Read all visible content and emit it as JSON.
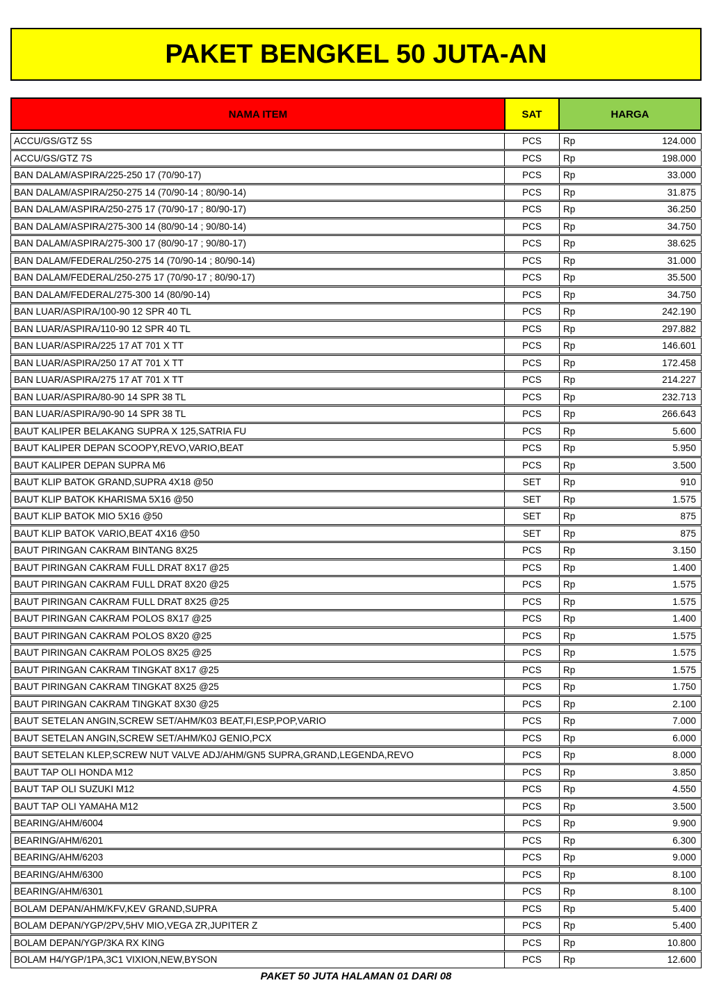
{
  "title": "PAKET BENGKEL 50 JUTA-AN",
  "footer": "PAKET 50 JUTA HALAMAN 01 DARI 08",
  "colors": {
    "banner_bg": "#FFFF00",
    "item_header_bg": "#FF0000",
    "unit_header_bg": "#FFFF00",
    "price_header_bg": "#92D050",
    "border": "#000000"
  },
  "table": {
    "headers": {
      "item": "NAMA ITEM",
      "unit": "SAT",
      "price": "HARGA"
    },
    "currency_prefix": "Rp",
    "items": [
      {
        "name": "ACCU/GS/GTZ 5S",
        "sat": "PCS",
        "price": "124.000"
      },
      {
        "name": "ACCU/GS/GTZ 7S",
        "sat": "PCS",
        "price": "198.000"
      },
      {
        "name": "BAN DALAM/ASPIRA/225-250 17 (70/90-17)",
        "sat": "PCS",
        "price": "33.000"
      },
      {
        "name": "BAN DALAM/ASPIRA/250-275 14 (70/90-14 ; 80/90-14)",
        "sat": "PCS",
        "price": "31.875"
      },
      {
        "name": "BAN DALAM/ASPIRA/250-275 17 (70/90-17 ; 80/90-17)",
        "sat": "PCS",
        "price": "36.250"
      },
      {
        "name": "BAN DALAM/ASPIRA/275-300 14 (80/90-14 ; 90/80-14)",
        "sat": "PCS",
        "price": "34.750"
      },
      {
        "name": "BAN DALAM/ASPIRA/275-300 17 (80/90-17 ; 90/80-17)",
        "sat": "PCS",
        "price": "38.625"
      },
      {
        "name": "BAN DALAM/FEDERAL/250-275 14 (70/90-14 ; 80/90-14)",
        "sat": "PCS",
        "price": "31.000"
      },
      {
        "name": "BAN DALAM/FEDERAL/250-275 17 (70/90-17 ; 80/90-17)",
        "sat": "PCS",
        "price": "35.500"
      },
      {
        "name": "BAN DALAM/FEDERAL/275-300 14 (80/90-14)",
        "sat": "PCS",
        "price": "34.750"
      },
      {
        "name": "BAN LUAR/ASPIRA/100-90 12 SPR 40 TL",
        "sat": "PCS",
        "price": "242.190"
      },
      {
        "name": "BAN LUAR/ASPIRA/110-90 12 SPR 40 TL",
        "sat": "PCS",
        "price": "297.882"
      },
      {
        "name": "BAN LUAR/ASPIRA/225 17 AT 701 X TT",
        "sat": "PCS",
        "price": "146.601"
      },
      {
        "name": "BAN LUAR/ASPIRA/250 17 AT 701 X TT",
        "sat": "PCS",
        "price": "172.458"
      },
      {
        "name": "BAN LUAR/ASPIRA/275 17 AT 701 X TT",
        "sat": "PCS",
        "price": "214.227"
      },
      {
        "name": "BAN LUAR/ASPIRA/80-90 14 SPR 38 TL",
        "sat": "PCS",
        "price": "232.713"
      },
      {
        "name": "BAN LUAR/ASPIRA/90-90 14 SPR 38 TL",
        "sat": "PCS",
        "price": "266.643"
      },
      {
        "name": "BAUT KALIPER BELAKANG SUPRA X 125,SATRIA FU",
        "sat": "PCS",
        "price": "5.600"
      },
      {
        "name": "BAUT KALIPER DEPAN SCOOPY,REVO,VARIO,BEAT",
        "sat": "PCS",
        "price": "5.950"
      },
      {
        "name": "BAUT KALIPER DEPAN SUPRA M6",
        "sat": "PCS",
        "price": "3.500"
      },
      {
        "name": "BAUT KLIP BATOK GRAND,SUPRA 4X18 @50",
        "sat": "SET",
        "price": "910"
      },
      {
        "name": "BAUT KLIP BATOK KHARISMA 5X16 @50",
        "sat": "SET",
        "price": "1.575"
      },
      {
        "name": "BAUT KLIP BATOK MIO 5X16 @50",
        "sat": "SET",
        "price": "875"
      },
      {
        "name": "BAUT KLIP BATOK VARIO,BEAT 4X16 @50",
        "sat": "SET",
        "price": "875"
      },
      {
        "name": "BAUT PIRINGAN CAKRAM BINTANG 8X25",
        "sat": "PCS",
        "price": "3.150"
      },
      {
        "name": "BAUT PIRINGAN CAKRAM FULL DRAT 8X17 @25",
        "sat": "PCS",
        "price": "1.400"
      },
      {
        "name": "BAUT PIRINGAN CAKRAM FULL DRAT 8X20 @25",
        "sat": "PCS",
        "price": "1.575"
      },
      {
        "name": "BAUT PIRINGAN CAKRAM FULL DRAT 8X25 @25",
        "sat": "PCS",
        "price": "1.575"
      },
      {
        "name": "BAUT PIRINGAN CAKRAM POLOS 8X17 @25",
        "sat": "PCS",
        "price": "1.400"
      },
      {
        "name": "BAUT PIRINGAN CAKRAM POLOS 8X20 @25",
        "sat": "PCS",
        "price": "1.575"
      },
      {
        "name": "BAUT PIRINGAN CAKRAM POLOS 8X25 @25",
        "sat": "PCS",
        "price": "1.575"
      },
      {
        "name": "BAUT PIRINGAN CAKRAM TINGKAT 8X17 @25",
        "sat": "PCS",
        "price": "1.575"
      },
      {
        "name": "BAUT PIRINGAN CAKRAM TINGKAT 8X25 @25",
        "sat": "PCS",
        "price": "1.750"
      },
      {
        "name": "BAUT PIRINGAN CAKRAM TINGKAT 8X30 @25",
        "sat": "PCS",
        "price": "2.100"
      },
      {
        "name": "BAUT SETELAN ANGIN,SCREW SET/AHM/K03 BEAT,FI,ESP,POP,VARIO",
        "sat": "PCS",
        "price": "7.000"
      },
      {
        "name": "BAUT SETELAN ANGIN,SCREW SET/AHM/K0J GENIO,PCX",
        "sat": "PCS",
        "price": "6.000"
      },
      {
        "name": "BAUT SETELAN KLEP,SCREW NUT VALVE ADJ/AHM/GN5 SUPRA,GRAND,LEGENDA,REVO",
        "sat": "PCS",
        "price": "8.000"
      },
      {
        "name": "BAUT TAP OLI HONDA M12",
        "sat": "PCS",
        "price": "3.850"
      },
      {
        "name": "BAUT TAP OLI SUZUKI M12",
        "sat": "PCS",
        "price": "4.550"
      },
      {
        "name": "BAUT TAP OLI YAMAHA M12",
        "sat": "PCS",
        "price": "3.500"
      },
      {
        "name": "BEARING/AHM/6004",
        "sat": "PCS",
        "price": "9.900"
      },
      {
        "name": "BEARING/AHM/6201",
        "sat": "PCS",
        "price": "6.300"
      },
      {
        "name": "BEARING/AHM/6203",
        "sat": "PCS",
        "price": "9.000"
      },
      {
        "name": "BEARING/AHM/6300",
        "sat": "PCS",
        "price": "8.100"
      },
      {
        "name": "BEARING/AHM/6301",
        "sat": "PCS",
        "price": "8.100"
      },
      {
        "name": "BOLAM DEPAN/AHM/KFV,KEV GRAND,SUPRA",
        "sat": "PCS",
        "price": "5.400"
      },
      {
        "name": "BOLAM DEPAN/YGP/2PV,5HV MIO,VEGA ZR,JUPITER Z",
        "sat": "PCS",
        "price": "5.400"
      },
      {
        "name": "BOLAM DEPAN/YGP/3KA RX KING",
        "sat": "PCS",
        "price": "10.800"
      },
      {
        "name": "BOLAM H4/YGP/1PA,3C1 VIXION,NEW,BYSON",
        "sat": "PCS",
        "price": "12.600"
      }
    ]
  }
}
